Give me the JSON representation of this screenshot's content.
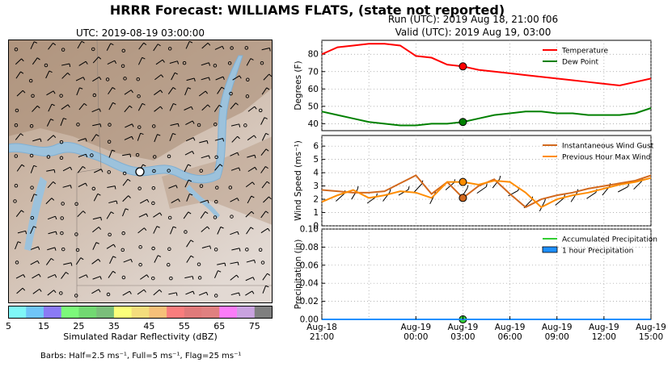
{
  "header": {
    "title": "HRRR Forecast: WILLIAMS FLATS, (state not reported)",
    "run": "Run (UTC): 2019 Aug 18, 21:00 f06",
    "valid": "Valid (UTC): 2019 Aug 19, 03:00"
  },
  "map": {
    "title": "UTC: 2019-08-19 03:00:00",
    "colorbar_label": "Simulated Radar Reflectivity (dBZ)",
    "colorbar_colors": [
      "#7ff7f7",
      "#6fc5f7",
      "#8a7af5",
      "#7cf97a",
      "#72d872",
      "#7abe7a",
      "#fbff7a",
      "#f4dd7c",
      "#f6c079",
      "#f97d7d",
      "#e07a7a",
      "#e08080",
      "#fb7cf8",
      "#c9a2df",
      "#7f7f7f"
    ],
    "colorbar_ticks": [
      "5",
      "15",
      "25",
      "35",
      "45",
      "55",
      "65",
      "75"
    ],
    "barbs_note": "Barbs: Half=2.5 ms⁻¹, Full=5 ms⁻¹, Flag=25 ms⁻¹"
  },
  "chart_data": [
    {
      "type": "line",
      "ylabel": "Degrees (F)",
      "ylim": [
        36,
        88
      ],
      "yticks": [
        "40",
        "50",
        "60",
        "70",
        "80"
      ],
      "grid": true,
      "legend": "top-right",
      "x": [
        "18:21",
        "18:22",
        "18:23",
        "18:24",
        "18:25",
        "18:26",
        "19:00",
        "19:01",
        "19:02",
        "19:03",
        "19:04",
        "19:05",
        "19:06",
        "19:07",
        "19:08",
        "19:09",
        "19:10",
        "19:11",
        "19:12",
        "19:13",
        "19:14",
        "19:15"
      ],
      "series": [
        {
          "name": "Temperature",
          "color": "#ff0000",
          "values": [
            80,
            84,
            85,
            86,
            86,
            85,
            79,
            78,
            74,
            73,
            71,
            70,
            69,
            68,
            67,
            66,
            65,
            64,
            63,
            62,
            64,
            66
          ]
        },
        {
          "name": "Dew Point",
          "color": "#008000",
          "values": [
            47,
            45,
            43,
            41,
            40,
            39,
            39,
            40,
            40,
            41,
            43,
            45,
            46,
            47,
            47,
            46,
            46,
            45,
            45,
            45,
            46,
            49
          ]
        }
      ],
      "marker_x": "19:03"
    },
    {
      "type": "line",
      "ylabel": "Wind Speed (ms⁻¹)",
      "ylim": [
        0,
        6.8
      ],
      "yticks": [
        "0",
        "1",
        "2",
        "3",
        "4",
        "5",
        "6"
      ],
      "grid": true,
      "legend": "top-right",
      "x": [
        "18:21",
        "18:22",
        "18:23",
        "18:24",
        "18:25",
        "18:26",
        "19:00",
        "19:01",
        "19:02",
        "19:03",
        "19:04",
        "19:05",
        "19:06",
        "19:07",
        "19:08",
        "19:09",
        "19:10",
        "19:11",
        "19:12",
        "19:13",
        "19:14",
        "19:15"
      ],
      "series": [
        {
          "name": "Instantaneous Wind Gust",
          "color": "#d2691e",
          "values": [
            2.7,
            2.6,
            2.5,
            2.5,
            2.6,
            3.2,
            3.8,
            2.4,
            3.3,
            2.1,
            3.0,
            3.5,
            2.4,
            1.4,
            2.0,
            2.3,
            2.5,
            2.8,
            3.0,
            3.2,
            3.4,
            3.8
          ]
        },
        {
          "name": "Previous Hour Max Wind",
          "color": "#ff8c00",
          "values": [
            1.8,
            2.3,
            2.7,
            2.1,
            2.3,
            2.6,
            2.5,
            2.1,
            3.3,
            3.3,
            3.1,
            3.4,
            3.3,
            2.5,
            1.4,
            2.0,
            2.3,
            2.5,
            2.8,
            3.1,
            3.3,
            3.6
          ]
        }
      ],
      "marker_x": "19:03"
    },
    {
      "type": "area",
      "ylabel": "Precipitation (in)",
      "ylim": [
        0,
        0.1
      ],
      "yticks": [
        "0.00",
        "0.02",
        "0.04",
        "0.06",
        "0.08",
        "0.10"
      ],
      "grid": true,
      "legend": "top-right",
      "xticks": [
        {
          "at": "18:21",
          "line1": "Aug-18",
          "line2": "21:00"
        },
        {
          "at": "19:00",
          "line1": "Aug-19",
          "line2": "00:00"
        },
        {
          "at": "19:03",
          "line1": "Aug-19",
          "line2": "03:00"
        },
        {
          "at": "19:06",
          "line1": "Aug-19",
          "line2": "06:00"
        },
        {
          "at": "19:09",
          "line1": "Aug-19",
          "line2": "09:00"
        },
        {
          "at": "19:12",
          "line1": "Aug-19",
          "line2": "12:00"
        },
        {
          "at": "19:15",
          "line1": "Aug-19",
          "line2": "15:00"
        }
      ],
      "series": [
        {
          "name": "Accumulated Precipitation",
          "color": "#32cd32",
          "values": [
            0,
            0,
            0,
            0,
            0,
            0,
            0,
            0,
            0,
            0,
            0,
            0,
            0,
            0,
            0,
            0,
            0,
            0,
            0,
            0,
            0,
            0
          ]
        },
        {
          "name": "1 hour Precipitation",
          "color": "#1e90ff",
          "values": [
            0,
            0,
            0,
            0,
            0,
            0,
            0,
            0,
            0,
            0,
            0,
            0,
            0,
            0,
            0,
            0,
            0,
            0,
            0,
            0,
            0,
            0
          ]
        }
      ],
      "marker_x": "19:03"
    }
  ]
}
